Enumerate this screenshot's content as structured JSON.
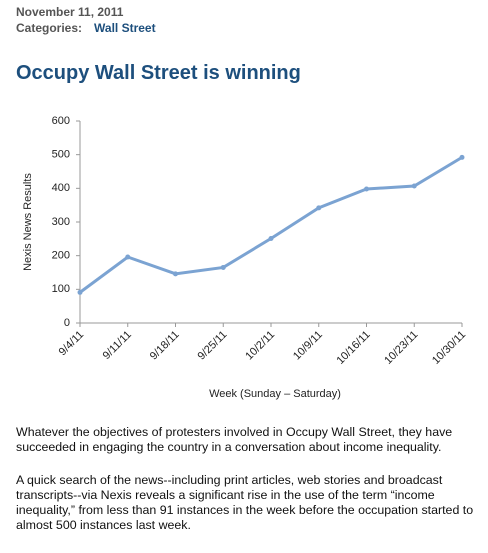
{
  "header": {
    "date": "November 11, 2011",
    "categories_label": "Categories:",
    "category": "Wall Street",
    "title": "Occupy Wall Street is winning"
  },
  "chart_data": {
    "type": "line",
    "categories": [
      "9/4/11",
      "9/11/11",
      "9/18/11",
      "9/25/11",
      "10/2/11",
      "10/9/11",
      "10/16/11",
      "10/23/11",
      "10/30/11"
    ],
    "values": [
      91,
      196,
      146,
      165,
      251,
      342,
      398,
      407,
      492
    ],
    "color": "#7ba3d2",
    "x_label": "Week (Sunday – Saturday)",
    "y_label": "Nexis News Results",
    "ylim": [
      0,
      600
    ],
    "yticks": [
      0,
      100,
      200,
      300,
      400,
      500,
      600
    ],
    "grid": false
  },
  "body": {
    "paragraphs": [
      "Whatever the objectives of protesters involved in Occupy Wall Street, they have succeeded in engaging the country in a conversation about income inequality.",
      "A quick search of the news--including print articles, web stories and broadcast transcripts--via Nexis reveals a significant rise in the use of the term “income inequality,” from less than 91 instances in the week before the occupation started to almost 500 instances last week."
    ]
  }
}
